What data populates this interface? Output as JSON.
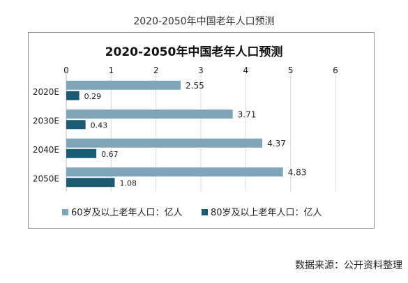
{
  "page": {
    "outer_title": "2020-2050年中国老年人口预测",
    "source_text": "数据来源：公开资料整理"
  },
  "chart_data": {
    "type": "bar",
    "orientation": "horizontal",
    "title": "2020-2050年中国老年人口预测",
    "categories": [
      "2020E",
      "2030E",
      "2040E",
      "2050E"
    ],
    "series": [
      {
        "name": "60岁及以上老年人口：亿人",
        "color": "#7ea6b8",
        "values": [
          2.55,
          3.71,
          4.37,
          4.83
        ]
      },
      {
        "name": "80岁及以上老年人口：亿人",
        "color": "#1b5a73",
        "values": [
          0.29,
          0.43,
          0.67,
          1.08
        ]
      }
    ],
    "xlim": [
      0,
      6
    ],
    "xticks": [
      0,
      1,
      2,
      3,
      4,
      5,
      6
    ],
    "x_axis_position": "top",
    "grid": true,
    "legend_position": "bottom"
  }
}
